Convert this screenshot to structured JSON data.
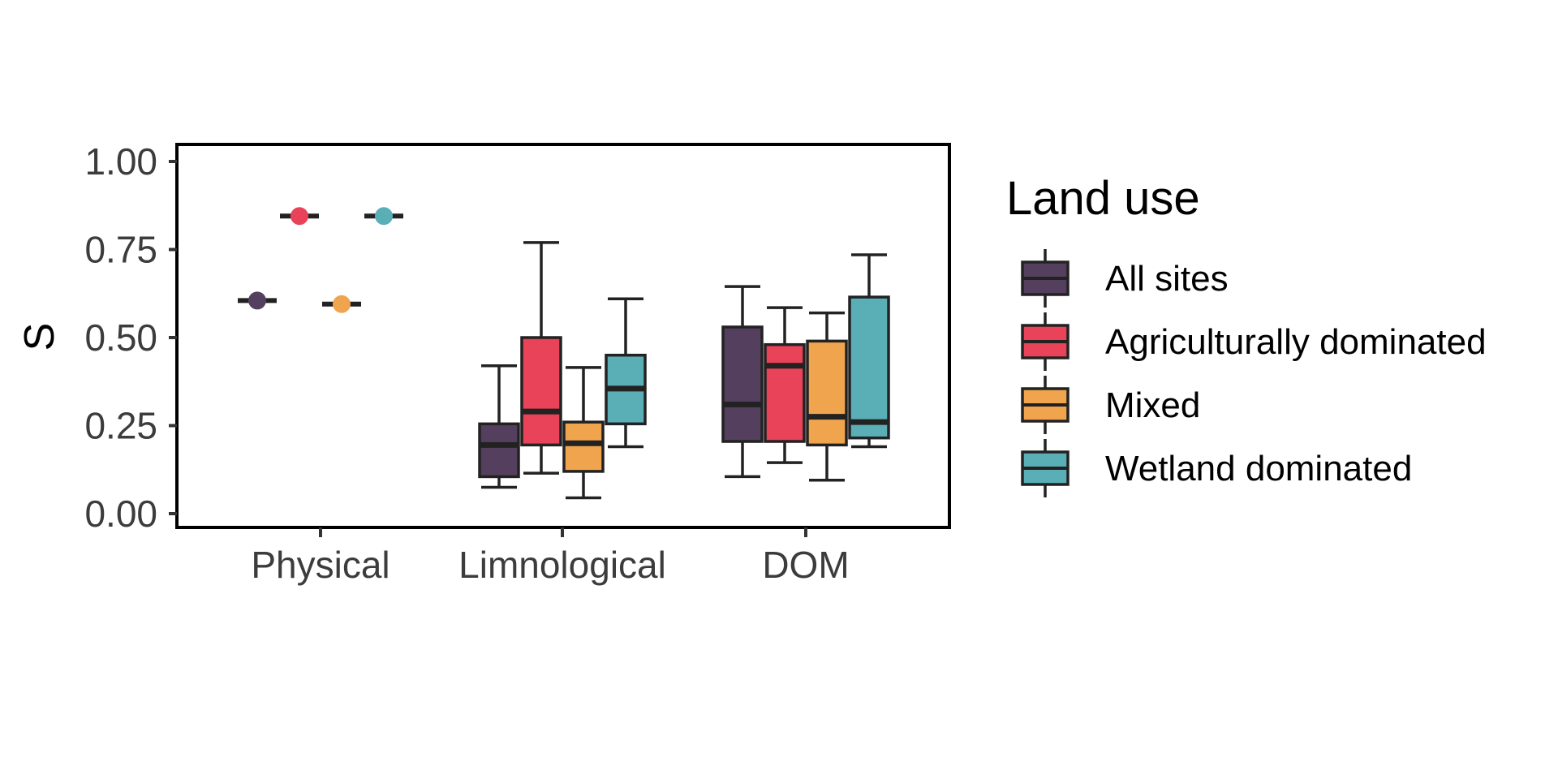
{
  "chart_data": {
    "type": "boxplot",
    "ylabel": "S",
    "xlabel": "",
    "ylim": [
      0,
      1
    ],
    "yticks": [
      "0.00",
      "0.25",
      "0.50",
      "0.75",
      "1.00"
    ],
    "ytick_values": [
      0,
      0.25,
      0.5,
      0.75,
      1.0
    ],
    "categories": [
      "Physical",
      "Limnological",
      "DOM"
    ],
    "legend_title": "Land use",
    "legend_position": "right",
    "grid": false,
    "series": [
      {
        "name": "All sites",
        "color": "#54405e",
        "values": [
          {
            "min": 0.605,
            "q1": 0.605,
            "median": 0.605,
            "q3": 0.605,
            "max": 0.605,
            "point": 0.605
          },
          {
            "min": 0.075,
            "q1": 0.105,
            "median": 0.195,
            "q3": 0.255,
            "max": 0.42
          },
          {
            "min": 0.105,
            "q1": 0.205,
            "median": 0.31,
            "q3": 0.53,
            "max": 0.645
          }
        ]
      },
      {
        "name": "Agriculturally dominated",
        "color": "#e84358",
        "values": [
          {
            "min": 0.845,
            "q1": 0.845,
            "median": 0.845,
            "q3": 0.845,
            "max": 0.845,
            "point": 0.845
          },
          {
            "min": 0.115,
            "q1": 0.195,
            "median": 0.29,
            "q3": 0.5,
            "max": 0.77
          },
          {
            "min": 0.145,
            "q1": 0.205,
            "median": 0.42,
            "q3": 0.48,
            "max": 0.585
          }
        ]
      },
      {
        "name": "Mixed",
        "color": "#f0a44e",
        "values": [
          {
            "min": 0.595,
            "q1": 0.595,
            "median": 0.595,
            "q3": 0.595,
            "max": 0.595,
            "point": 0.595
          },
          {
            "min": 0.045,
            "q1": 0.12,
            "median": 0.2,
            "q3": 0.26,
            "max": 0.415
          },
          {
            "min": 0.095,
            "q1": 0.195,
            "median": 0.275,
            "q3": 0.49,
            "max": 0.57
          }
        ]
      },
      {
        "name": "Wetland dominated",
        "color": "#5aafb6",
        "values": [
          {
            "min": 0.845,
            "q1": 0.845,
            "median": 0.845,
            "q3": 0.845,
            "max": 0.845,
            "point": 0.845
          },
          {
            "min": 0.19,
            "q1": 0.255,
            "median": 0.355,
            "q3": 0.45,
            "max": 0.61
          },
          {
            "min": 0.19,
            "q1": 0.215,
            "median": 0.26,
            "q3": 0.615,
            "max": 0.735
          }
        ]
      }
    ]
  }
}
